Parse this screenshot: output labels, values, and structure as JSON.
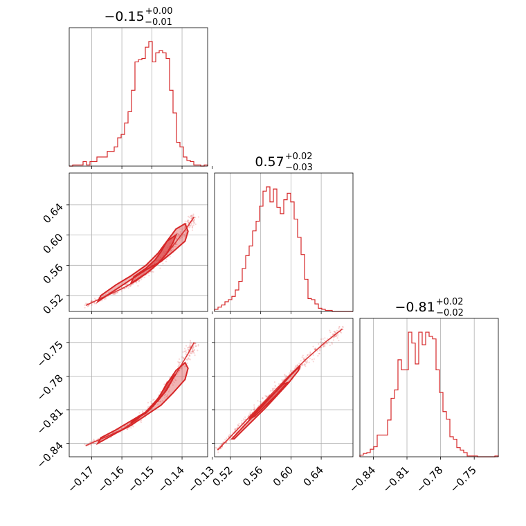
{
  "chart_data": {
    "type": "corner",
    "color": "#d62728",
    "grid": true,
    "titles": [
      {
        "median": "−0.15",
        "plus": "+0.00",
        "minus": "−0.01"
      },
      {
        "median": "0.57",
        "plus": "+0.02",
        "minus": "−0.03"
      },
      {
        "median": "−0.81",
        "plus": "+0.02",
        "minus": "−0.02"
      }
    ],
    "params": [
      {
        "range": [
          -0.1775,
          -0.1315
        ],
        "ticks": [
          -0.17,
          -0.16,
          -0.15,
          -0.14,
          -0.13
        ],
        "tick_labels": [
          "−0.17",
          "−0.16",
          "−0.15",
          "−0.14",
          "−0.13"
        ]
      },
      {
        "range": [
          0.499,
          0.682
        ],
        "ticks": [
          0.52,
          0.56,
          0.6,
          0.64
        ],
        "tick_labels": [
          "0.52",
          "0.56",
          "0.60",
          "0.64"
        ]
      },
      {
        "range": [
          -0.852,
          -0.7285
        ],
        "ticks": [
          -0.84,
          -0.81,
          -0.78,
          -0.75
        ],
        "tick_labels": [
          "−0.84",
          "−0.81",
          "−0.78",
          "−0.75"
        ]
      }
    ],
    "hist_1d": [
      {
        "values": [
          0,
          1,
          1,
          1,
          4,
          1,
          4,
          4,
          8,
          8,
          8,
          13,
          13,
          17,
          25,
          28,
          38,
          48,
          67,
          92,
          94,
          95,
          105,
          110,
          92,
          100,
          102,
          100,
          95,
          67,
          47,
          21,
          17,
          8,
          5,
          4,
          1,
          1,
          0,
          1
        ]
      },
      {
        "values": [
          2,
          4,
          6,
          9,
          11,
          14,
          20,
          28,
          40,
          52,
          61,
          75,
          84,
          98,
          112,
          116,
          102,
          114,
          97,
          91,
          104,
          110,
          102,
          86,
          69,
          53,
          30,
          12,
          11,
          7,
          3,
          2,
          1,
          1,
          0,
          0,
          0,
          0,
          0,
          0
        ]
      },
      {
        "values": [
          2,
          4,
          5,
          9,
          12,
          26,
          26,
          26,
          44,
          70,
          80,
          116,
          104,
          104,
          149,
          136,
          111,
          149,
          134,
          149,
          144,
          141,
          104,
          77,
          54,
          45,
          24,
          21,
          11,
          8,
          5,
          1,
          1,
          1,
          0,
          0,
          0,
          0,
          0,
          1
        ]
      }
    ],
    "scatter_2d": [
      {
        "x_param": 0,
        "y_param": 1,
        "center": [
          [
            -0.172,
            0.507
          ],
          [
            -0.166,
            0.518
          ],
          [
            -0.16,
            0.529
          ],
          [
            -0.155,
            0.54
          ],
          [
            -0.15,
            0.555
          ],
          [
            -0.146,
            0.571
          ],
          [
            -0.142,
            0.591
          ],
          [
            -0.138,
            0.612
          ],
          [
            -0.136,
            0.624
          ]
        ],
        "contour_1": [
          [
            -0.168,
            0.512
          ],
          [
            -0.162,
            0.528
          ],
          [
            -0.157,
            0.541
          ],
          [
            -0.152,
            0.554
          ],
          [
            -0.147,
            0.565
          ],
          [
            -0.143,
            0.578
          ],
          [
            -0.139,
            0.592
          ],
          [
            -0.138,
            0.605
          ],
          [
            -0.139,
            0.615
          ],
          [
            -0.142,
            0.608
          ],
          [
            -0.145,
            0.592
          ],
          [
            -0.148,
            0.576
          ],
          [
            -0.152,
            0.56
          ],
          [
            -0.157,
            0.546
          ],
          [
            -0.162,
            0.534
          ],
          [
            -0.167,
            0.52
          ]
        ],
        "contour_2": [
          [
            -0.157,
            0.536
          ],
          [
            -0.152,
            0.549
          ],
          [
            -0.148,
            0.562
          ],
          [
            -0.145,
            0.576
          ],
          [
            -0.143,
            0.59
          ],
          [
            -0.142,
            0.6
          ],
          [
            -0.145,
            0.592
          ],
          [
            -0.147,
            0.578
          ],
          [
            -0.149,
            0.567
          ],
          [
            -0.152,
            0.556
          ],
          [
            -0.156,
            0.545
          ]
        ]
      },
      {
        "x_param": 0,
        "y_param": 2,
        "center": [
          [
            -0.172,
            -0.842
          ],
          [
            -0.166,
            -0.835
          ],
          [
            -0.16,
            -0.828
          ],
          [
            -0.155,
            -0.819
          ],
          [
            -0.15,
            -0.807
          ],
          [
            -0.146,
            -0.795
          ],
          [
            -0.142,
            -0.778
          ],
          [
            -0.138,
            -0.76
          ],
          [
            -0.136,
            -0.75
          ]
        ],
        "contour_1": [
          [
            -0.168,
            -0.84
          ],
          [
            -0.162,
            -0.831
          ],
          [
            -0.157,
            -0.824
          ],
          [
            -0.152,
            -0.815
          ],
          [
            -0.147,
            -0.806
          ],
          [
            -0.143,
            -0.795
          ],
          [
            -0.139,
            -0.783
          ],
          [
            -0.138,
            -0.773
          ],
          [
            -0.139,
            -0.768
          ],
          [
            -0.142,
            -0.775
          ],
          [
            -0.145,
            -0.787
          ],
          [
            -0.148,
            -0.8
          ],
          [
            -0.152,
            -0.812
          ],
          [
            -0.157,
            -0.82
          ],
          [
            -0.162,
            -0.828
          ],
          [
            -0.167,
            -0.835
          ]
        ],
        "contour_2": [
          [
            -0.157,
            -0.822
          ],
          [
            -0.152,
            -0.812
          ],
          [
            -0.148,
            -0.802
          ],
          [
            -0.145,
            -0.792
          ],
          [
            -0.143,
            -0.782
          ],
          [
            -0.142,
            -0.778
          ],
          [
            -0.145,
            -0.786
          ],
          [
            -0.147,
            -0.796
          ],
          [
            -0.149,
            -0.805
          ],
          [
            -0.152,
            -0.813
          ],
          [
            -0.156,
            -0.819
          ]
        ]
      },
      {
        "x_param": 1,
        "y_param": 2,
        "center": [
          [
            0.503,
            -0.846
          ],
          [
            0.52,
            -0.834
          ],
          [
            0.54,
            -0.82
          ],
          [
            0.56,
            -0.806
          ],
          [
            0.58,
            -0.792
          ],
          [
            0.6,
            -0.778
          ],
          [
            0.62,
            -0.765
          ],
          [
            0.645,
            -0.75
          ],
          [
            0.668,
            -0.738
          ]
        ],
        "contour_1": [
          [
            0.522,
            -0.836
          ],
          [
            0.54,
            -0.823
          ],
          [
            0.555,
            -0.812
          ],
          [
            0.57,
            -0.801
          ],
          [
            0.585,
            -0.79
          ],
          [
            0.6,
            -0.779
          ],
          [
            0.612,
            -0.771
          ],
          [
            0.61,
            -0.775
          ],
          [
            0.597,
            -0.786
          ],
          [
            0.582,
            -0.797
          ],
          [
            0.567,
            -0.808
          ],
          [
            0.552,
            -0.818
          ],
          [
            0.537,
            -0.828
          ],
          [
            0.525,
            -0.836
          ]
        ],
        "contour_2": [
          [
            0.545,
            -0.818
          ],
          [
            0.56,
            -0.807
          ],
          [
            0.575,
            -0.797
          ],
          [
            0.59,
            -0.787
          ],
          [
            0.595,
            -0.786
          ],
          [
            0.582,
            -0.796
          ],
          [
            0.567,
            -0.806
          ],
          [
            0.552,
            -0.816
          ]
        ]
      }
    ]
  }
}
